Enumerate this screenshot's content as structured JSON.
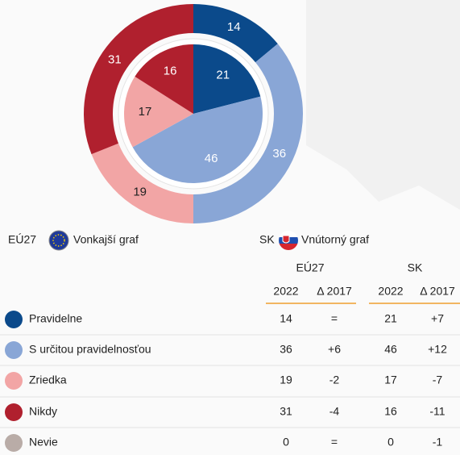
{
  "chart_data": {
    "type": "donut",
    "categories": [
      "Pravidelne",
      "S určitou pravidelnosťou",
      "Zriedka",
      "Nikdy",
      "Nevie"
    ],
    "colors": [
      "#0b4a8b",
      "#89a6d6",
      "#f2a5a5",
      "#b0202e",
      "#b9aca7"
    ],
    "series": [
      {
        "name": "EÚ27",
        "ring": "Vonkajší graf",
        "values": [
          14,
          36,
          19,
          31,
          0
        ]
      },
      {
        "name": "SK",
        "ring": "Vnútorný graf",
        "values": [
          21,
          46,
          17,
          16,
          0
        ]
      }
    ]
  },
  "table": {
    "columns": [
      "2022",
      "Δ 2017"
    ],
    "changes": [
      [
        "=",
        "+6",
        "-2",
        "-4",
        "="
      ],
      [
        "+7",
        "+12",
        "-7",
        "-11",
        "-1"
      ]
    ]
  }
}
